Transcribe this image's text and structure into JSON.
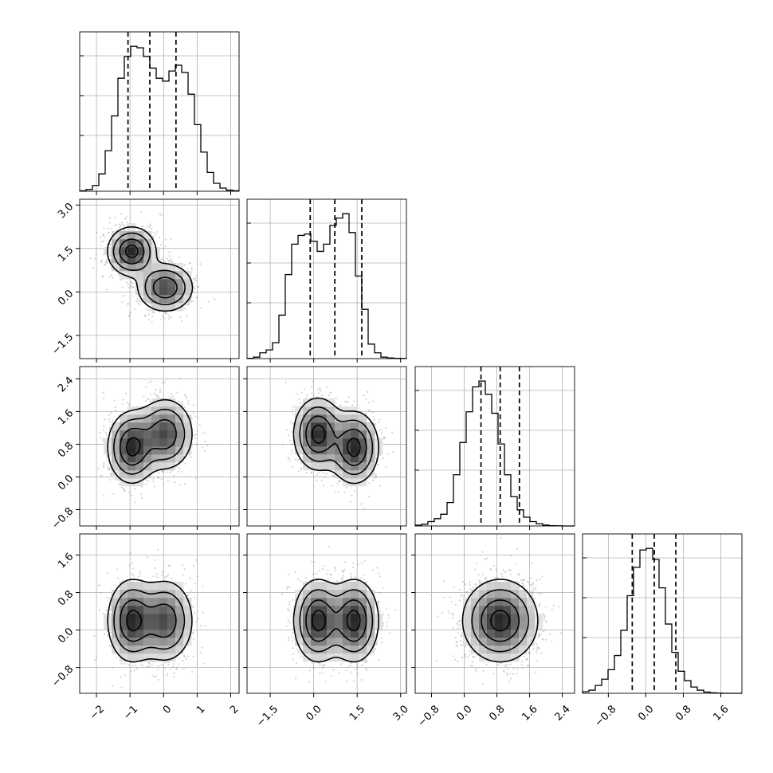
{
  "chart_data": {
    "type": "corner",
    "parameters": [
      {
        "range": [
          -2.5,
          2.25
        ],
        "ticks": [
          -2,
          -1,
          0,
          1,
          2
        ],
        "tick_labels": [
          "−2",
          "−1",
          "0",
          "1",
          "2"
        ],
        "quantiles": [
          -1.06,
          -0.41,
          0.37
        ],
        "histogram": [
          0.003,
          0.012,
          0.04,
          0.12,
          0.28,
          0.52,
          0.78,
          0.93,
          1.0,
          0.99,
          0.93,
          0.85,
          0.78,
          0.76,
          0.83,
          0.87,
          0.82,
          0.67,
          0.46,
          0.27,
          0.13,
          0.055,
          0.022,
          0.008,
          0.003
        ],
        "gaussians": [
          {
            "w": 0.5,
            "m": -0.95,
            "s": 0.36
          },
          {
            "w": 0.5,
            "m": 0.05,
            "s": 0.42
          }
        ]
      },
      {
        "range": [
          -2.3,
          3.2
        ],
        "ticks": [
          -1.5,
          0.0,
          1.5,
          3.0
        ],
        "tick_labels": [
          "−1.5",
          "0.0",
          "1.5",
          "3.0"
        ],
        "quantiles": [
          -0.12,
          0.73,
          1.66
        ],
        "histogram": [
          0.002,
          0.01,
          0.04,
          0.06,
          0.11,
          0.3,
          0.58,
          0.79,
          0.85,
          0.86,
          0.81,
          0.74,
          0.79,
          0.92,
          0.97,
          1.0,
          0.87,
          0.57,
          0.34,
          0.1,
          0.04,
          0.01,
          0.005,
          0.002,
          0.001
        ],
        "gaussians": [
          {
            "w": 0.5,
            "m": 0.15,
            "s": 0.42
          },
          {
            "w": 0.5,
            "m": 1.4,
            "s": 0.42
          }
        ]
      },
      {
        "range": [
          -1.2,
          2.7
        ],
        "ticks": [
          -0.8,
          0.0,
          0.8,
          1.6,
          2.4
        ],
        "tick_labels": [
          "−0.8",
          "0.0",
          "0.8",
          "1.6",
          "2.4"
        ],
        "quantiles": [
          0.41,
          0.88,
          1.35
        ],
        "histogram": [
          0.005,
          0.012,
          0.03,
          0.05,
          0.08,
          0.16,
          0.35,
          0.57,
          0.78,
          0.95,
          0.99,
          0.9,
          0.77,
          0.56,
          0.35,
          0.2,
          0.11,
          0.06,
          0.03,
          0.015,
          0.006,
          0.002,
          0.001,
          0.0,
          0.0
        ],
        "gaussians": [
          {
            "w": 1.0,
            "m": 0.88,
            "s": 0.46
          }
        ]
      },
      {
        "range": [
          -1.35,
          2.05
        ],
        "ticks": [
          -0.8,
          0.0,
          0.8,
          1.6
        ],
        "tick_labels": [
          "−0.8",
          "0.0",
          "0.8",
          "1.6"
        ],
        "quantiles": [
          -0.29,
          0.18,
          0.64
        ],
        "histogram": [
          0.01,
          0.02,
          0.05,
          0.09,
          0.15,
          0.24,
          0.4,
          0.62,
          0.8,
          0.91,
          0.92,
          0.85,
          0.67,
          0.44,
          0.26,
          0.14,
          0.08,
          0.04,
          0.02,
          0.008,
          0.003,
          0.001,
          0.0,
          0.0,
          0.0
        ],
        "gaussians": [
          {
            "w": 1.0,
            "m": 0.18,
            "s": 0.46
          }
        ]
      }
    ],
    "pairs": [
      {
        "x": 0,
        "y": 1,
        "components": [
          {
            "w": 0.5,
            "mx": -0.95,
            "my": 1.4,
            "sx": 0.36,
            "sy": 0.42,
            "rho": 0.0
          },
          {
            "w": 0.5,
            "mx": 0.05,
            "my": 0.15,
            "sx": 0.42,
            "sy": 0.42,
            "rho": 0.0
          }
        ]
      },
      {
        "x": 0,
        "y": 2,
        "components": [
          {
            "w": 0.5,
            "mx": -0.95,
            "my": 0.72,
            "sx": 0.36,
            "sy": 0.44,
            "rho": 0.0
          },
          {
            "w": 0.5,
            "mx": 0.05,
            "my": 1.05,
            "sx": 0.42,
            "sy": 0.44,
            "rho": 0.0
          }
        ]
      },
      {
        "x": 1,
        "y": 2,
        "components": [
          {
            "w": 0.5,
            "mx": 0.15,
            "my": 1.05,
            "sx": 0.42,
            "sy": 0.44,
            "rho": 0.0
          },
          {
            "w": 0.5,
            "mx": 1.4,
            "my": 0.72,
            "sx": 0.42,
            "sy": 0.44,
            "rho": 0.0
          }
        ]
      },
      {
        "x": 0,
        "y": 3,
        "components": [
          {
            "w": 0.5,
            "mx": -0.95,
            "my": 0.2,
            "sx": 0.36,
            "sy": 0.44,
            "rho": 0.0
          },
          {
            "w": 0.5,
            "mx": 0.05,
            "my": 0.2,
            "sx": 0.42,
            "sy": 0.44,
            "rho": 0.0
          }
        ]
      },
      {
        "x": 1,
        "y": 3,
        "components": [
          {
            "w": 0.5,
            "mx": 0.15,
            "my": 0.2,
            "sx": 0.42,
            "sy": 0.44,
            "rho": 0.0
          },
          {
            "w": 0.5,
            "mx": 1.4,
            "my": 0.2,
            "sx": 0.42,
            "sy": 0.44,
            "rho": 0.0
          }
        ]
      },
      {
        "x": 2,
        "y": 3,
        "components": [
          {
            "w": 1.0,
            "mx": 0.88,
            "my": 0.2,
            "sx": 0.46,
            "sy": 0.44,
            "rho": 0.0
          }
        ]
      }
    ],
    "levels_sigma": [
      0.5,
      1.0,
      1.5,
      2.0
    ],
    "grid": true,
    "title": "",
    "xlabel": "",
    "ylabel": ""
  }
}
